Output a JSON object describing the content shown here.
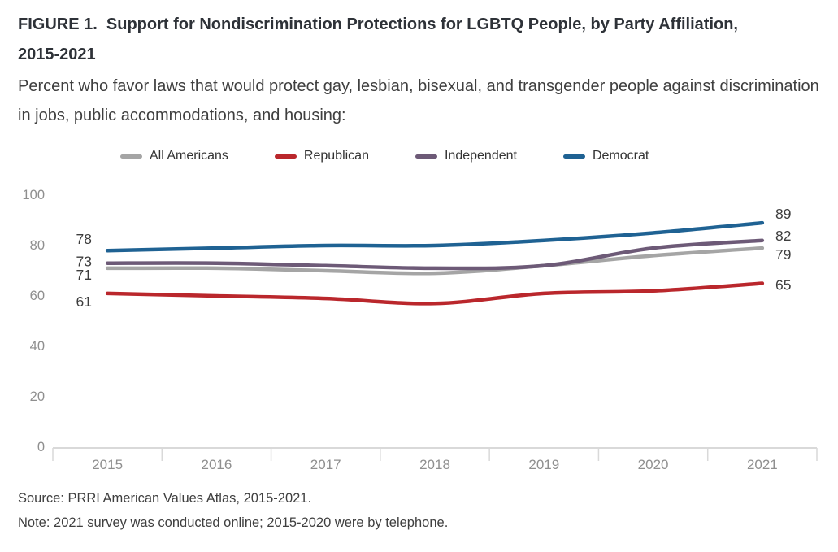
{
  "figure": {
    "title": "FIGURE 1.  Support for Nondiscrimination Protections for LGBTQ People, by Party Affiliation, 2015-2021",
    "subtitle": "Percent who favor laws that would protect gay, lesbian, bisexual, and transgender people against discrimination in jobs, public accommodations, and housing:",
    "source": "Source: PRRI American Values Atlas, 2015-2021.",
    "note": "Note: 2021 survey was conducted online; 2015-2020 were by telephone."
  },
  "chart_data": {
    "type": "line",
    "title": "Support for Nondiscrimination Protections for LGBTQ People, by Party Affiliation, 2015-2021",
    "categories": [
      "2015",
      "2016",
      "2017",
      "2018",
      "2019",
      "2020",
      "2021"
    ],
    "series": [
      {
        "name": "All Americans",
        "slug": "all-americans",
        "color": "#a5a5a5",
        "values": [
          71,
          71,
          70,
          69,
          72,
          76,
          79
        ],
        "start_label": "71",
        "end_label": "79"
      },
      {
        "name": "Republican",
        "slug": "republican",
        "color": "#ba272c",
        "values": [
          61,
          60,
          59,
          57,
          61,
          62,
          65
        ],
        "start_label": "61",
        "end_label": "65"
      },
      {
        "name": "Independent",
        "slug": "independent",
        "color": "#6d5a77",
        "values": [
          73,
          73,
          72,
          71,
          72,
          79,
          82
        ],
        "start_label": "73",
        "end_label": "82"
      },
      {
        "name": "Democrat",
        "slug": "democrat",
        "color": "#1f6293",
        "values": [
          78,
          79,
          80,
          80,
          82,
          85,
          89
        ],
        "start_label": "78",
        "end_label": "89"
      }
    ],
    "ylim": [
      0,
      100
    ],
    "yticks": [
      0,
      20,
      40,
      60,
      80,
      100
    ],
    "xlabel": "",
    "ylabel": "",
    "grid": false,
    "legend_position": "top",
    "endpoint_labels": true,
    "axis_color": "#d9d9d9",
    "tick_label_color": "#8f8f8f",
    "value_label_color": "#3d3d3d"
  }
}
